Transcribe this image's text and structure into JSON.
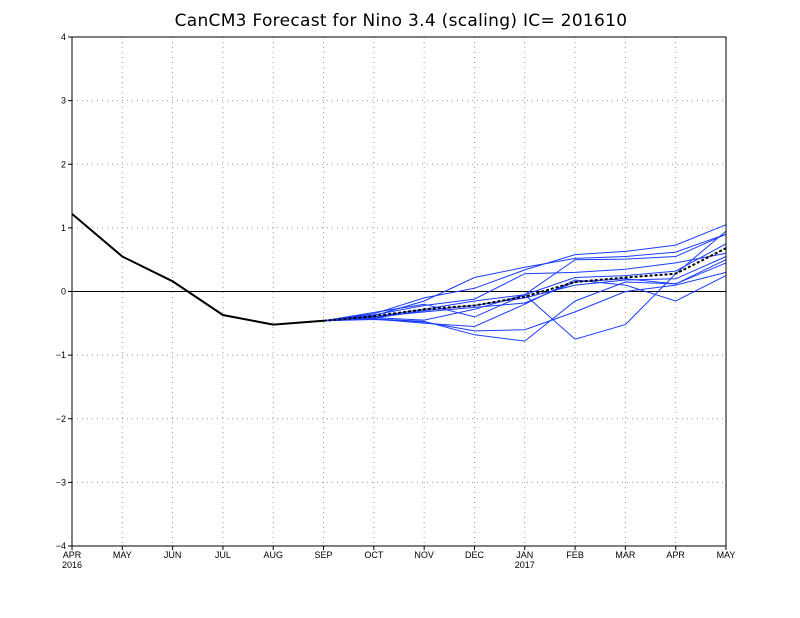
{
  "chart_data": {
    "type": "line",
    "title": "CanCM3 Forecast for Nino 3.4 (scaling) IC= 201610",
    "xlabel": "",
    "ylabel": "",
    "ylim": [
      -4,
      4
    ],
    "yticks": [
      -4,
      -3,
      -2,
      -1,
      0,
      1,
      2,
      3,
      4
    ],
    "grid": true,
    "categories": [
      "APR",
      "MAY",
      "JUN",
      "JUL",
      "AUG",
      "SEP",
      "OCT",
      "NOV",
      "DEC",
      "JAN",
      "FEB",
      "MAR",
      "APR",
      "MAY"
    ],
    "year_labels": [
      {
        "index": 0,
        "text": "2016"
      },
      {
        "index": 9,
        "text": "2017"
      }
    ],
    "zero_line": 0,
    "colors": {
      "observed": "#000000",
      "members": "#1a3cff",
      "mean": "#000000",
      "grid": "#999999"
    },
    "observed": {
      "start_index": 0,
      "values": [
        1.22,
        0.55,
        0.16,
        -0.37,
        -0.52,
        -0.46
      ]
    },
    "members": {
      "start_index": 5,
      "series": [
        {
          "values": [
            -0.46,
            -0.38,
            -0.15,
            0.22,
            0.38,
            0.52,
            0.55,
            0.62,
            0.9
          ]
        },
        {
          "values": [
            -0.46,
            -0.35,
            -0.1,
            0.05,
            0.34,
            0.58,
            0.63,
            0.73,
            1.05
          ]
        },
        {
          "values": [
            -0.46,
            -0.33,
            -0.2,
            -0.4,
            -0.05,
            0.5,
            0.51,
            0.55,
            0.9
          ]
        },
        {
          "values": [
            -0.46,
            -0.37,
            -0.22,
            -0.12,
            0.28,
            0.3,
            0.35,
            0.45,
            0.6
          ]
        },
        {
          "values": [
            -0.46,
            -0.4,
            -0.28,
            -0.15,
            -0.05,
            0.22,
            0.25,
            0.32,
            0.75
          ]
        },
        {
          "values": [
            -0.46,
            -0.42,
            -0.3,
            -0.22,
            -0.1,
            0.1,
            0.18,
            0.2,
            0.55
          ]
        },
        {
          "values": [
            -0.46,
            -0.4,
            -0.32,
            -0.25,
            -0.18,
            0.15,
            0.2,
            0.12,
            0.45
          ]
        },
        {
          "values": [
            -0.46,
            -0.44,
            -0.48,
            -0.62,
            -0.6,
            -0.32,
            0.0,
            0.1,
            0.3
          ]
        },
        {
          "values": [
            -0.46,
            -0.43,
            -0.47,
            -0.68,
            -0.78,
            -0.15,
            0.15,
            0.12,
            0.5
          ]
        },
        {
          "values": [
            -0.46,
            -0.41,
            -0.45,
            -0.28,
            -0.05,
            -0.75,
            -0.52,
            0.28,
            0.95
          ]
        },
        {
          "values": [
            -0.46,
            -0.43,
            -0.5,
            -0.55,
            -0.2,
            0.18,
            0.1,
            -0.15,
            0.25
          ]
        }
      ]
    },
    "ensemble_mean": {
      "start_index": 5,
      "values": [
        -0.46,
        -0.39,
        -0.28,
        -0.22,
        -0.08,
        0.15,
        0.22,
        0.28,
        0.68
      ]
    }
  }
}
